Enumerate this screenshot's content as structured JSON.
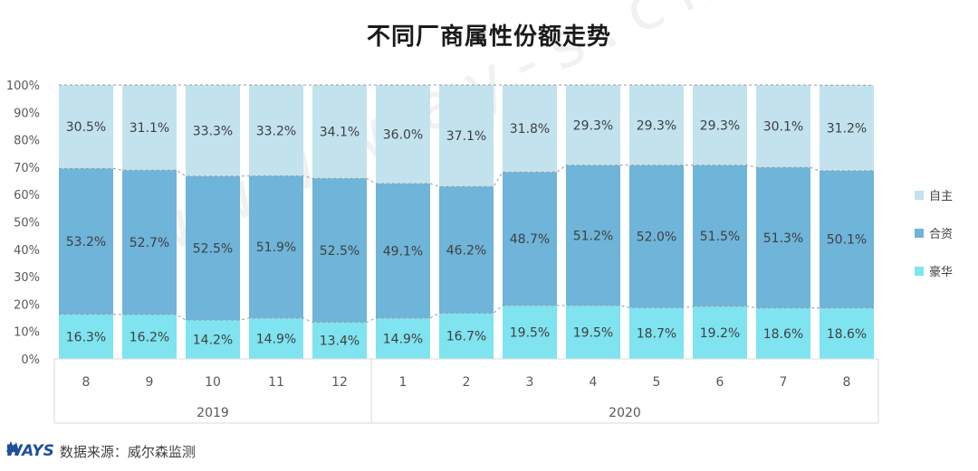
{
  "chart_data": {
    "type": "stacked-bar-100",
    "title": "不同厂商属性份额走势",
    "categories": [
      "8",
      "9",
      "10",
      "11",
      "12",
      "1",
      "2",
      "3",
      "4",
      "5",
      "6",
      "7",
      "8"
    ],
    "groups": [
      {
        "label": "2019",
        "start": 0,
        "end": 4
      },
      {
        "label": "2020",
        "start": 5,
        "end": 12
      }
    ],
    "series": [
      {
        "name": "豪华",
        "color": "#7fe3f0",
        "values": [
          16.3,
          16.2,
          14.2,
          14.9,
          13.4,
          14.9,
          16.7,
          19.5,
          19.5,
          18.7,
          19.2,
          18.6,
          18.6
        ]
      },
      {
        "name": "合资",
        "color": "#6fb4d9",
        "values": [
          53.2,
          52.7,
          52.5,
          51.9,
          52.5,
          49.1,
          46.2,
          48.7,
          51.2,
          52.0,
          51.5,
          51.3,
          50.1
        ]
      },
      {
        "name": "自主",
        "color": "#c2e2ee",
        "values": [
          30.5,
          31.1,
          33.3,
          33.2,
          34.1,
          36.0,
          37.1,
          31.8,
          29.3,
          29.3,
          29.3,
          30.1,
          31.2
        ]
      }
    ],
    "yticks": [
      "0%",
      "10%",
      "20%",
      "30%",
      "40%",
      "50%",
      "60%",
      "70%",
      "80%",
      "90%",
      "100%"
    ],
    "ylim": [
      0,
      100
    ],
    "legend_position": "right",
    "legend_order": [
      "自主",
      "合资",
      "豪华"
    ]
  },
  "watermark": "www.way-s.cn",
  "footer": {
    "logo": "WAYS",
    "source": "数据来源：威尔森监测"
  }
}
